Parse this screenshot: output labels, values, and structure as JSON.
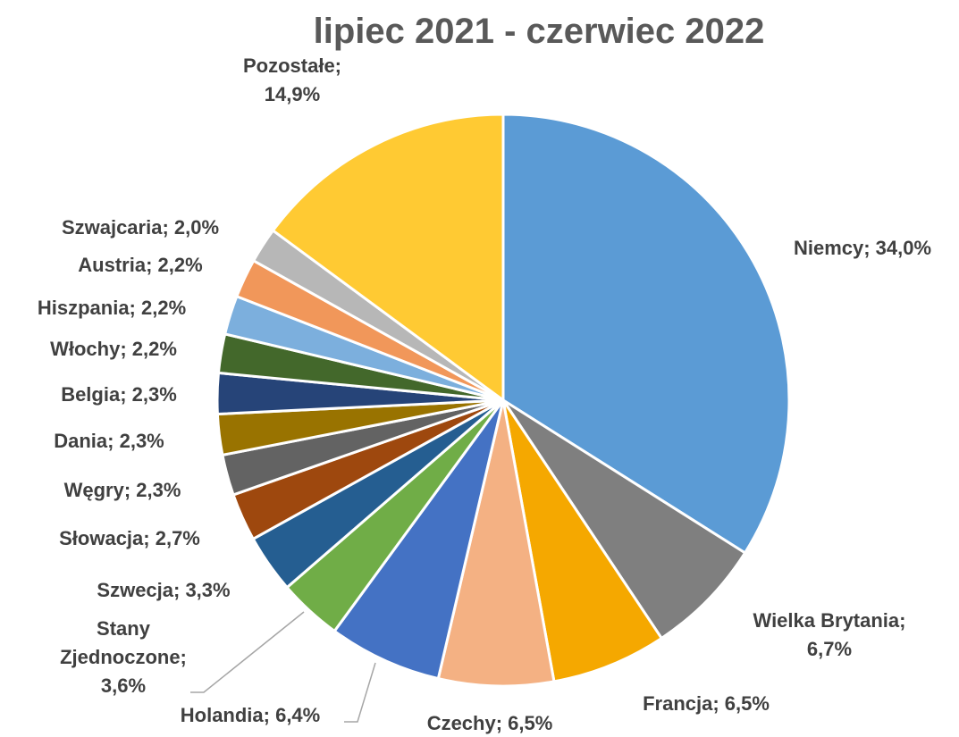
{
  "chart_data": {
    "type": "pie",
    "title": "lipiec  2021 - czerwiec 2022",
    "legend": "none",
    "slices": [
      {
        "name": "Niemcy",
        "value": 34.0,
        "label": "Niemcy; 34,0%",
        "color": "#5B9BD5"
      },
      {
        "name": "Wielka Brytania",
        "value": 6.7,
        "label": "Wielka Brytania;|6,7%",
        "color": "#7F7F7F"
      },
      {
        "name": "Francja",
        "value": 6.5,
        "label": "Francja; 6,5%",
        "color": "#F5A800"
      },
      {
        "name": "Czechy",
        "value": 6.5,
        "label": "Czechy; 6,5%",
        "color": "#F4B183"
      },
      {
        "name": "Holandia",
        "value": 6.4,
        "label": "Holandia; 6,4%",
        "color": "#4472C4"
      },
      {
        "name": "Stany Zjednoczone",
        "value": 3.6,
        "label": "Stany|Zjednoczone;|3,6%",
        "color": "#70AD47"
      },
      {
        "name": "Szwecja",
        "value": 3.3,
        "label": "Szwecja; 3,3%",
        "color": "#255E91"
      },
      {
        "name": "Słowacja",
        "value": 2.7,
        "label": "Słowacja; 2,7%",
        "color": "#9E480E"
      },
      {
        "name": "Węgry",
        "value": 2.3,
        "label": "Węgry; 2,3%",
        "color": "#636363"
      },
      {
        "name": "Dania",
        "value": 2.3,
        "label": "Dania; 2,3%",
        "color": "#997300"
      },
      {
        "name": "Belgia",
        "value": 2.3,
        "label": "Belgia; 2,3%",
        "color": "#264478"
      },
      {
        "name": "Włochy",
        "value": 2.2,
        "label": "Włochy; 2,2%",
        "color": "#43682B"
      },
      {
        "name": "Hiszpania",
        "value": 2.2,
        "label": "Hiszpania; 2,2%",
        "color": "#7CAFDD"
      },
      {
        "name": "Austria",
        "value": 2.2,
        "label": "Austria; 2,2%",
        "color": "#F1975A"
      },
      {
        "name": "Szwajcaria",
        "value": 2.0,
        "label": "Szwajcaria; 2,0%",
        "color": "#B7B7B7"
      },
      {
        "name": "Pozostałe",
        "value": 14.9,
        "label": "Pozostałe;|14,9%",
        "color": "#FFCA33"
      }
    ]
  }
}
